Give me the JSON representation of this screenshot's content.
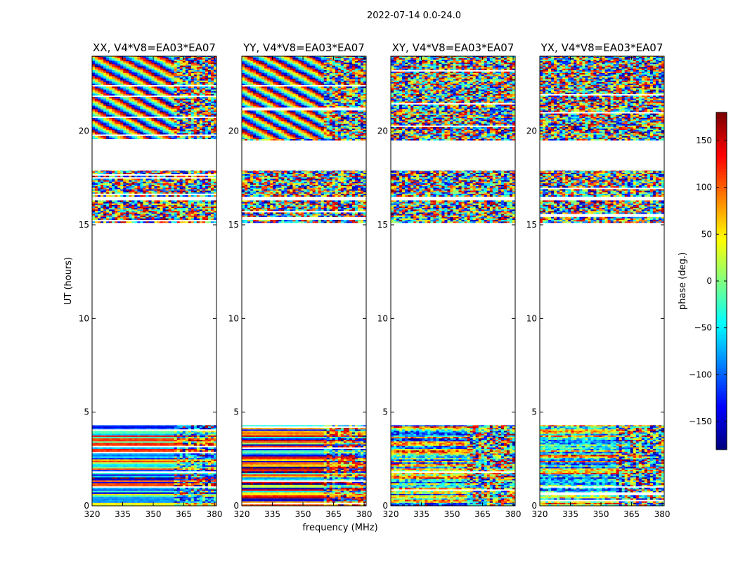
{
  "figure": {
    "suptitle": "2022-07-14 0.0-24.0",
    "xlabel": "frequency (MHz)",
    "ylabel": "UT (hours)"
  },
  "chart_data": {
    "type": "heatmap",
    "title": "2022-07-14 0.0-24.0",
    "xlabel": "frequency (MHz)",
    "ylabel": "UT (hours)",
    "xlim": [
      320,
      381
    ],
    "ylim": [
      0,
      24
    ],
    "x_ticks": [
      320,
      335,
      350,
      365,
      380
    ],
    "y_ticks": [
      0,
      5,
      10,
      15,
      20
    ],
    "colormap": "jet",
    "colorbar": {
      "label": "phase (deg.)",
      "range": [
        -180,
        180
      ],
      "ticks": [
        -150,
        -100,
        -50,
        0,
        50,
        100,
        150
      ],
      "tick_labels": [
        "−150",
        "−100",
        "−50",
        "0",
        "50",
        "100",
        "150"
      ]
    },
    "data_time_ranges": [
      [
        0,
        4.3
      ],
      [
        15.1,
        16.3
      ],
      [
        16.5,
        17.9
      ],
      [
        19.5,
        24
      ]
    ],
    "no_data_ranges": [
      [
        4.3,
        15.1
      ],
      [
        17.9,
        19.5
      ]
    ],
    "panels": [
      {
        "title": "XX, V4*V8=EA03*EA07",
        "pattern": "coherent"
      },
      {
        "title": "YY, V4*V8=EA03*EA07",
        "pattern": "coherent"
      },
      {
        "title": "XY, V4*V8=EA03*EA07",
        "pattern": "noisy"
      },
      {
        "title": "YX, V4*V8=EA03*EA07",
        "pattern": "noisy"
      }
    ]
  }
}
